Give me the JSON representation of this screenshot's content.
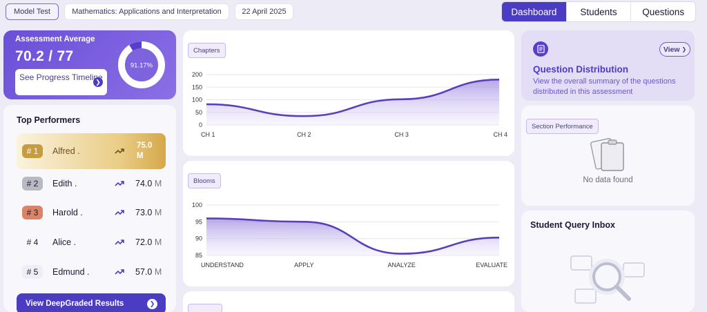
{
  "header": {
    "chips": {
      "model": "Model Test",
      "subject": "Mathematics: Applications and Interpretation",
      "date": "22 April 2025"
    },
    "tabs": [
      {
        "label": "Dashboard",
        "active": true
      },
      {
        "label": "Students",
        "active": false
      },
      {
        "label": "Questions",
        "active": false
      }
    ]
  },
  "assessment": {
    "title": "Assessment Average",
    "score": "70.2 / 77",
    "percent_label": "91.17%",
    "percent_value": 91.17,
    "progress_button": "See Progress Timeline"
  },
  "top_performers": {
    "title": "Top Performers",
    "rows": [
      {
        "rank": "# 1",
        "name": "Alfred .",
        "score": "75.0",
        "unit": "M"
      },
      {
        "rank": "# 2",
        "name": "Edith .",
        "score": "74.0",
        "unit": "M"
      },
      {
        "rank": "# 3",
        "name": "Harold .",
        "score": "73.0",
        "unit": "M"
      },
      {
        "rank": "# 4",
        "name": "Alice .",
        "score": "72.0",
        "unit": "M"
      },
      {
        "rank": "# 5",
        "name": "Edmund .",
        "score": "57.0",
        "unit": "M"
      }
    ],
    "results_button": "View DeepGraded Results"
  },
  "chart_data": [
    {
      "type": "area",
      "title": "Chapters",
      "categories": [
        "CH 1",
        "CH 2",
        "CH 3",
        "CH 4"
      ],
      "values": [
        82,
        35,
        102,
        180
      ],
      "ylim": [
        0,
        200
      ],
      "yticks": [
        0,
        50,
        100,
        150,
        200
      ]
    },
    {
      "type": "area",
      "title": "Blooms",
      "categories": [
        "UNDERSTAND",
        "APPLY",
        "ANALYZE",
        "EVALUATE"
      ],
      "values": [
        96,
        95,
        85.5,
        90.3
      ],
      "ylim": [
        85,
        100
      ],
      "yticks": [
        85,
        90,
        95,
        100
      ]
    }
  ],
  "question_distribution": {
    "title": "Question Distribution",
    "description": "View the overall summary of the questions distributed in this assessment",
    "view_button": "View"
  },
  "section_performance": {
    "title": "Section Performance",
    "empty_text": "No data found"
  },
  "student_query": {
    "title": "Student Query Inbox"
  },
  "colors": {
    "accent": "#4b3cc4",
    "line": "#5b3fb8",
    "gold": "#c79c3e"
  }
}
